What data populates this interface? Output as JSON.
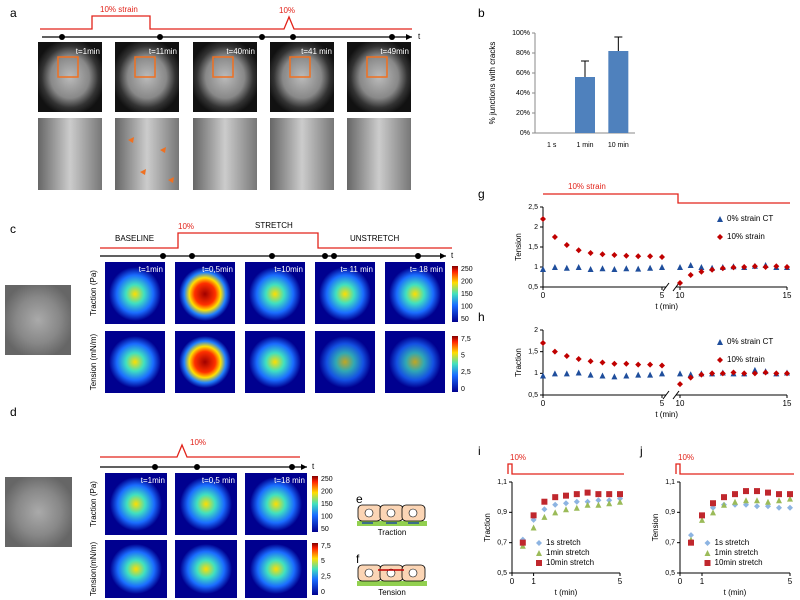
{
  "panels": {
    "a": {
      "label": "a",
      "protocol": {
        "strain": "10% strain",
        "pulse": "10%"
      },
      "axis": "t",
      "times": [
        "t=1min",
        "t=11min",
        "t=40min",
        "t=41 min",
        "t=49min"
      ]
    },
    "c": {
      "label": "c",
      "phases": [
        "BASELINE",
        "10%",
        "STRETCH",
        "UNSTRETCH"
      ],
      "axis": "t",
      "times": [
        "t=1min",
        "t=0,5min",
        "t=10min",
        "t= 11 min",
        "t= 18 min"
      ],
      "rows": [
        "Traction (Pa)",
        "Tension (mN/m)"
      ],
      "traction_scale": [
        "250",
        "200",
        "150",
        "100",
        "50"
      ],
      "tension_scale": [
        "7,5",
        "5",
        "2,5",
        "0"
      ]
    },
    "d": {
      "label": "d",
      "pulse": "10%",
      "axis": "t",
      "times": [
        "t=1min",
        "t=0,5 min",
        "t=18 min"
      ],
      "rows": [
        "Traction (Pa)",
        "Tension(mN/m)"
      ],
      "traction_scale": [
        "250",
        "200",
        "150",
        "100",
        "50"
      ],
      "tension_scale": [
        "7,5",
        "5",
        "2,5",
        "0"
      ]
    },
    "e": {
      "label": "e",
      "caption": "Traction"
    },
    "f": {
      "label": "f",
      "caption": "Tension"
    }
  },
  "chart_data": [
    {
      "panel": "b",
      "type": "bar",
      "ylabel": "% junctions with cracks",
      "categories": [
        "1 s",
        "1 min",
        "10 min"
      ],
      "values": [
        0,
        56,
        82
      ],
      "errors": [
        0,
        16,
        14
      ],
      "color": "#4f81bd",
      "ylim": [
        0,
        100
      ],
      "yticks": [
        {
          "value": 0,
          "label": "0%"
        },
        {
          "value": 20,
          "label": "20%"
        },
        {
          "value": 40,
          "label": "40%"
        },
        {
          "value": 60,
          "label": "60%"
        },
        {
          "value": 80,
          "label": "80%"
        },
        {
          "value": 100,
          "label": "100%"
        }
      ]
    },
    {
      "panel": "g",
      "type": "scatter",
      "annotation": "10% strain",
      "ylabel": "Tension",
      "xlabel": "t (min)",
      "legend": "upper right",
      "xlim": [
        0,
        15
      ],
      "xbreak": [
        5,
        10
      ],
      "xticks": [
        0,
        5,
        10,
        15
      ],
      "ylim": [
        0.5,
        2.5
      ],
      "yticks": [
        {
          "value": 0.5,
          "label": "0,5"
        },
        1,
        {
          "value": 1.5,
          "label": "1,5"
        },
        2,
        {
          "value": 2.5,
          "label": "2,5"
        }
      ],
      "x": [
        0,
        0.5,
        1,
        1.5,
        2,
        2.5,
        3,
        3.5,
        4,
        4.5,
        5,
        10,
        10.5,
        11,
        11.5,
        12,
        12.5,
        13,
        13.5,
        14,
        14.5,
        15
      ],
      "series": [
        {
          "name": "0% strain CT",
          "color": "#1f4e9c",
          "marker": "triangle",
          "values": [
            0.95,
            1.0,
            0.98,
            1.0,
            0.95,
            0.97,
            0.95,
            0.97,
            0.96,
            0.98,
            1.0,
            1.0,
            1.05,
            1.0,
            0.98,
            1.0,
            1.02,
            1.0,
            1.03,
            1.05,
            1.0,
            1.0
          ]
        },
        {
          "name": "10% strain",
          "color": "#c00000",
          "marker": "diamond",
          "values": [
            2.2,
            1.75,
            1.55,
            1.42,
            1.35,
            1.32,
            1.3,
            1.28,
            1.27,
            1.27,
            1.25,
            0.6,
            0.8,
            0.88,
            0.93,
            0.97,
            0.99,
            1.0,
            1.02,
            1.0,
            1.02,
            1.0
          ]
        }
      ]
    },
    {
      "panel": "h",
      "type": "scatter",
      "ylabel": "Traction",
      "xlabel": "t (min)",
      "legend": "upper right",
      "xlim": [
        0,
        15
      ],
      "xbreak": [
        5,
        10
      ],
      "xticks": [
        0,
        5,
        10,
        15
      ],
      "ylim": [
        0.5,
        2
      ],
      "yticks": [
        {
          "value": 0.5,
          "label": "0,5"
        },
        1,
        {
          "value": 1.5,
          "label": "1,5"
        },
        2
      ],
      "x": [
        0,
        0.5,
        1,
        1.5,
        2,
        2.5,
        3,
        3.5,
        4,
        4.5,
        5,
        10,
        10.5,
        11,
        11.5,
        12,
        12.5,
        13,
        13.5,
        14,
        14.5,
        15
      ],
      "series": [
        {
          "name": "0% strain CT",
          "color": "#1f4e9c",
          "marker": "triangle",
          "values": [
            0.95,
            1.0,
            1.0,
            1.02,
            0.97,
            0.95,
            0.93,
            0.95,
            0.97,
            0.97,
            1.0,
            1.0,
            0.98,
            1.0,
            1.0,
            1.02,
            1.0,
            1.0,
            1.08,
            1.05,
            1.0,
            1.02
          ]
        },
        {
          "name": "10% strain",
          "color": "#c00000",
          "marker": "diamond",
          "values": [
            1.7,
            1.5,
            1.4,
            1.33,
            1.28,
            1.25,
            1.22,
            1.22,
            1.2,
            1.2,
            1.18,
            0.75,
            0.9,
            0.97,
            1.0,
            1.0,
            1.02,
            1.0,
            1.0,
            1.02,
            1.0,
            1.0
          ]
        }
      ]
    },
    {
      "panel": "i",
      "type": "scatter",
      "annotation": "10%",
      "ylabel": "Traction",
      "xlabel": "t (min)",
      "legend": "lower right",
      "xlim": [
        0,
        5
      ],
      "xticks": [
        0,
        1,
        5
      ],
      "ylim": [
        0.5,
        1.1
      ],
      "yticks": [
        {
          "value": 0.5,
          "label": "0,5"
        },
        {
          "value": 0.7,
          "label": "0,7"
        },
        {
          "value": 0.9,
          "label": "0,9"
        },
        {
          "value": 1.1,
          "label": "1,1"
        }
      ],
      "x": [
        0.5,
        1,
        1.5,
        2,
        2.5,
        3,
        3.5,
        4,
        4.5,
        5
      ],
      "series": [
        {
          "name": "1s stretch",
          "color": "#8db4e2",
          "marker": "diamond",
          "values": [
            0.72,
            0.85,
            0.92,
            0.95,
            0.96,
            0.97,
            0.97,
            0.98,
            0.98,
            0.99
          ]
        },
        {
          "name": "1min stretch",
          "color": "#9bbb59",
          "marker": "triangle",
          "values": [
            0.68,
            0.8,
            0.87,
            0.9,
            0.92,
            0.93,
            0.95,
            0.95,
            0.96,
            0.97
          ]
        },
        {
          "name": "10min stretch",
          "color": "#c0272d",
          "marker": "square",
          "values": [
            0.7,
            0.88,
            0.97,
            1.0,
            1.01,
            1.02,
            1.03,
            1.02,
            1.02,
            1.02
          ]
        }
      ]
    },
    {
      "panel": "j",
      "type": "scatter",
      "annotation": "10%",
      "ylabel": "Tension",
      "xlabel": "t (min)",
      "legend": "lower right",
      "xlim": [
        0,
        5
      ],
      "xticks": [
        0,
        1,
        5
      ],
      "ylim": [
        0.5,
        1.1
      ],
      "yticks": [
        {
          "value": 0.5,
          "label": "0,5"
        },
        {
          "value": 0.7,
          "label": "0,7"
        },
        {
          "value": 0.9,
          "label": "0,9"
        },
        {
          "value": 1.1,
          "label": "1,1"
        }
      ],
      "x": [
        0.5,
        1,
        1.5,
        2,
        2.5,
        3,
        3.5,
        4,
        4.5,
        5
      ],
      "series": [
        {
          "name": "1s stretch",
          "color": "#8db4e2",
          "marker": "diamond",
          "values": [
            0.75,
            0.88,
            0.93,
            0.95,
            0.95,
            0.95,
            0.94,
            0.94,
            0.93,
            0.93
          ]
        },
        {
          "name": "1min stretch",
          "color": "#9bbb59",
          "marker": "triangle",
          "values": [
            0.72,
            0.85,
            0.9,
            0.95,
            0.97,
            0.98,
            0.98,
            0.97,
            0.98,
            0.99
          ]
        },
        {
          "name": "10min stretch",
          "color": "#c0272d",
          "marker": "square",
          "values": [
            0.7,
            0.88,
            0.96,
            1.0,
            1.02,
            1.04,
            1.04,
            1.03,
            1.02,
            1.02
          ]
        }
      ]
    }
  ]
}
